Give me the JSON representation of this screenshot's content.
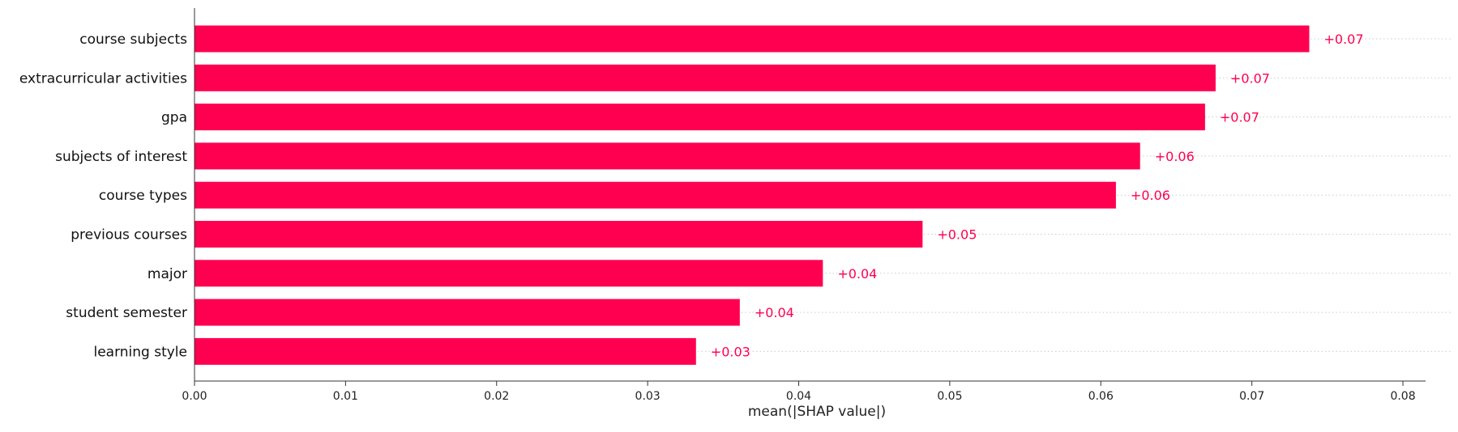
{
  "chart_data": {
    "type": "bar",
    "orientation": "horizontal",
    "categories": [
      "course subjects",
      "extracurricular activities",
      "gpa",
      "subjects of interest",
      "course types",
      "previous courses",
      "major",
      "student semester",
      "learning style"
    ],
    "values": [
      0.0738,
      0.0676,
      0.0669,
      0.0626,
      0.061,
      0.0482,
      0.0416,
      0.0361,
      0.0332
    ],
    "data_labels": [
      "+0.07",
      "+0.07",
      "+0.07",
      "+0.06",
      "+0.06",
      "+0.05",
      "+0.04",
      "+0.04",
      "+0.03"
    ],
    "xlabel": "mean(|SHAP value|)",
    "ylabel": "",
    "title": "",
    "xlim": [
      0,
      0.0815
    ],
    "xticks": [
      0.0,
      0.01,
      0.02,
      0.03,
      0.04,
      0.05,
      0.06,
      0.07,
      0.08
    ],
    "xtick_labels": [
      "0.00",
      "0.01",
      "0.02",
      "0.03",
      "0.04",
      "0.05",
      "0.06",
      "0.07",
      "0.08"
    ],
    "grid": "dotted row guide lines",
    "bar_color": "#ff0051",
    "label_color": "#ff0051",
    "guide_color": "#cccccc"
  }
}
